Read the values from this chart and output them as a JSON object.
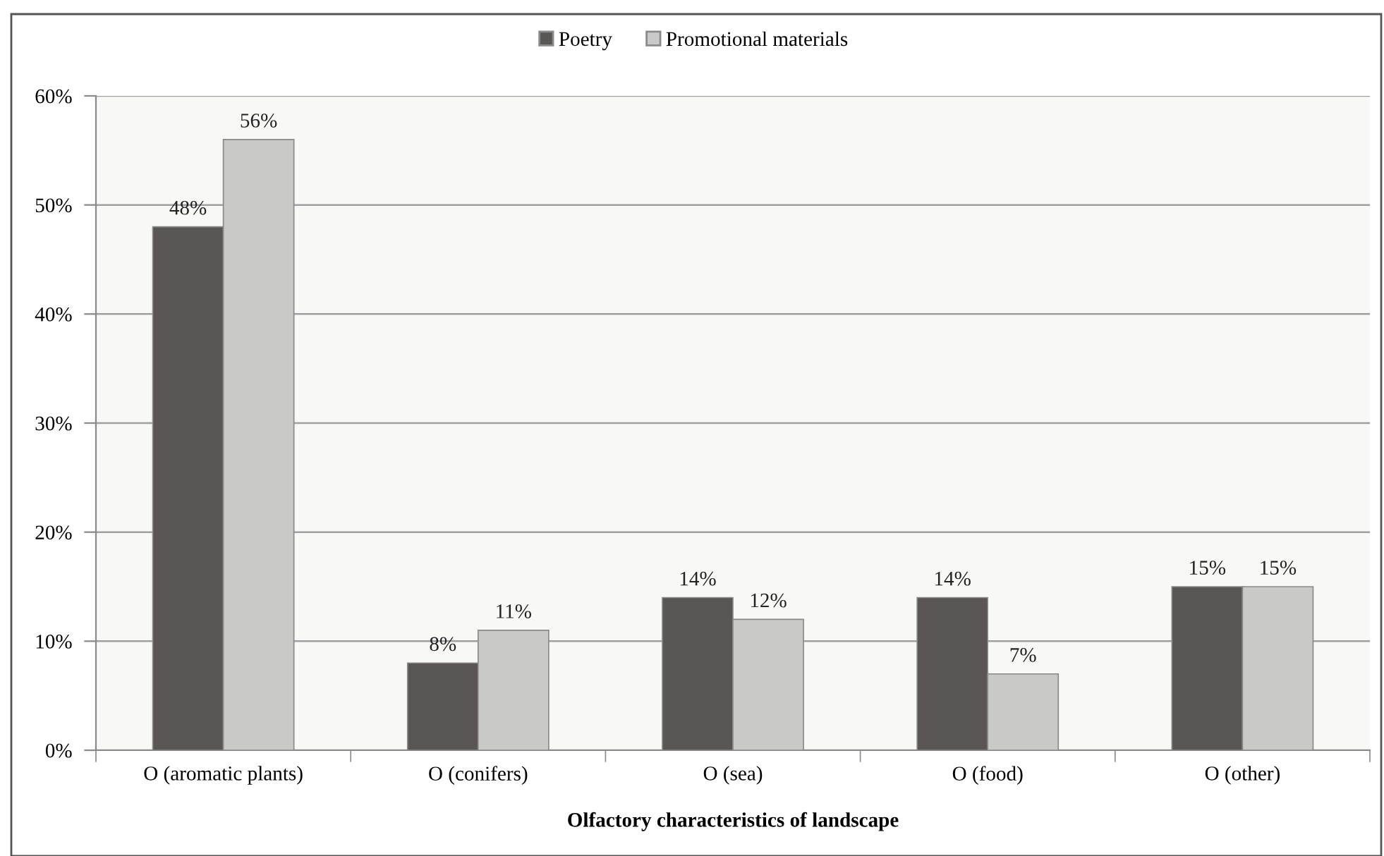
{
  "chart_data": {
    "type": "bar",
    "categories": [
      "O (aromatic plants)",
      "O (conifers)",
      "O (sea)",
      "O (food)",
      "O (other)"
    ],
    "series": [
      {
        "name": "Poetry",
        "color": "#5a5655",
        "values": [
          48,
          8,
          14,
          14,
          15
        ],
        "value_labels": [
          "48%",
          "8%",
          "14%",
          "14%",
          "15%"
        ]
      },
      {
        "name": "Promotional materials",
        "color": "#c9c9c7",
        "values": [
          56,
          11,
          12,
          7,
          15
        ],
        "value_labels": [
          "56%",
          "11%",
          "12%",
          "7%",
          "15%"
        ]
      }
    ],
    "xlabel": "Olfactory characteristics of landscape",
    "ylim": [
      0,
      60
    ],
    "yticks": [
      {
        "value": 0,
        "label": "0%"
      },
      {
        "value": 10,
        "label": "10%"
      },
      {
        "value": 20,
        "label": "20%"
      },
      {
        "value": 30,
        "label": "30%"
      },
      {
        "value": 40,
        "label": "40%"
      },
      {
        "value": 50,
        "label": "50%"
      },
      {
        "value": 60,
        "label": "60%"
      }
    ],
    "grid": "y",
    "legend": "top"
  }
}
